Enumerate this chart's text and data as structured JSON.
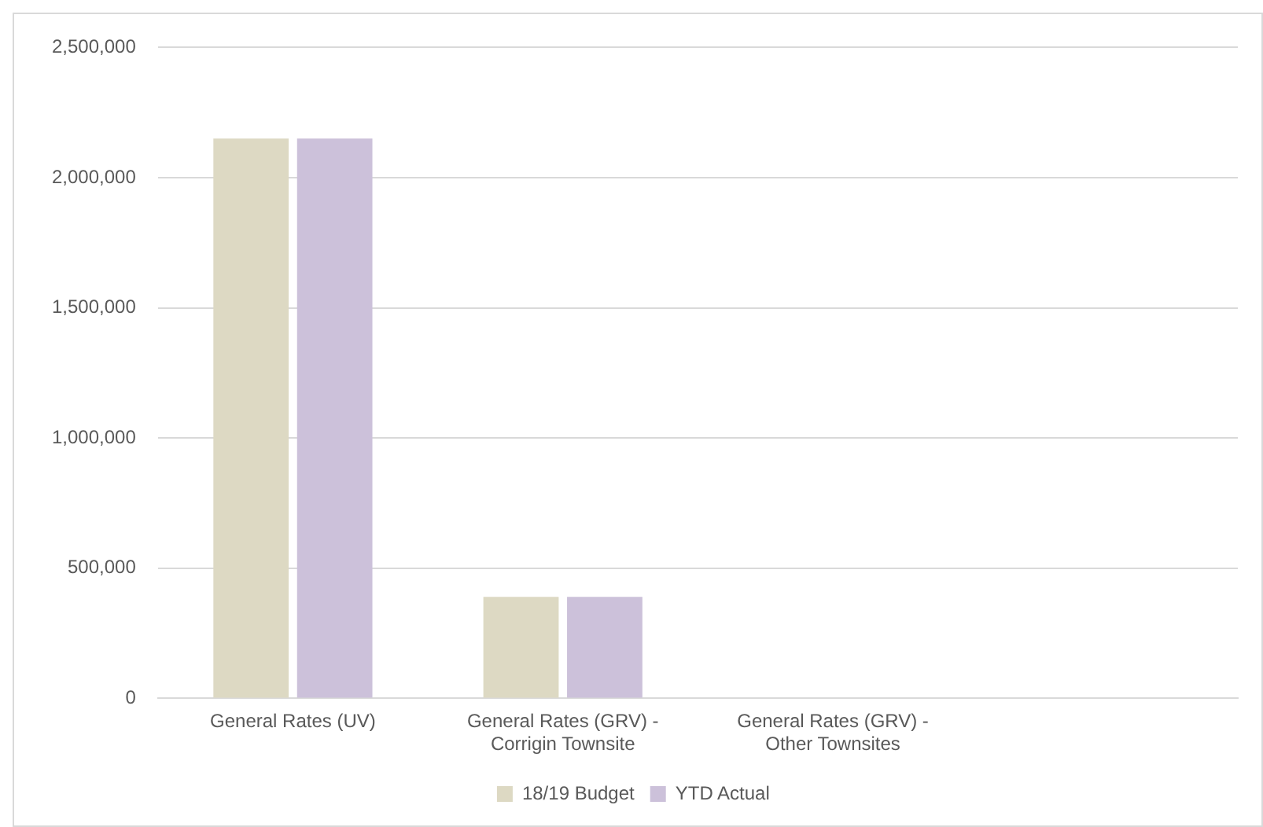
{
  "chart_data": {
    "type": "bar",
    "categories": [
      "General Rates (UV)",
      "General Rates (GRV) - Corrigin Townsite",
      "General Rates (GRV) - Other Townsites",
      null
    ],
    "series": [
      {
        "name": "18/19 Budget",
        "color": "#ddd9c3",
        "values": [
          2150000,
          390000,
          0,
          null
        ]
      },
      {
        "name": "YTD Actual",
        "color": "#ccc1da",
        "values": [
          2150000,
          390000,
          0,
          null
        ]
      }
    ],
    "ylim": [
      0,
      2500000
    ],
    "yticks": [
      0,
      {
        "value": 500000,
        "label": "500,000"
      },
      {
        "value": 1000000,
        "label": "1,000,000"
      },
      {
        "value": 1500000,
        "label": "1,500,000"
      },
      {
        "value": 2000000,
        "label": "2,000,000"
      },
      {
        "value": 2500000,
        "label": "2,500,000"
      }
    ],
    "grid": "y",
    "legend": "bottom"
  }
}
